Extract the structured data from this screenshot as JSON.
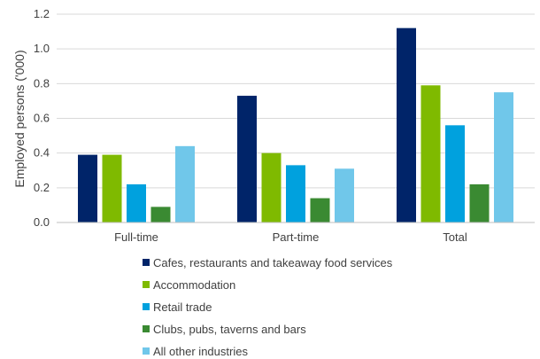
{
  "chart_data": {
    "type": "bar",
    "title": "",
    "xlabel": "",
    "ylabel": "Employed persons ('000)",
    "ylim": [
      0,
      1.2
    ],
    "yticks": [
      "0.0",
      "0.2",
      "0.4",
      "0.6",
      "0.8",
      "1.0",
      "1.2"
    ],
    "grid": true,
    "legend_position": "bottom",
    "categories": [
      "Full-time",
      "Part-time",
      "Total"
    ],
    "series": [
      {
        "name": "Cafes, restaurants and takeaway food services",
        "color": "#002469",
        "values": [
          0.39,
          0.73,
          1.12
        ]
      },
      {
        "name": "Accommodation",
        "color": "#7FBA00",
        "values": [
          0.39,
          0.4,
          0.79
        ]
      },
      {
        "name": "Retail trade",
        "color": "#00A1DE",
        "values": [
          0.22,
          0.33,
          0.56
        ]
      },
      {
        "name": "Clubs, pubs, taverns and bars",
        "color": "#3A8A32",
        "values": [
          0.09,
          0.14,
          0.22
        ]
      },
      {
        "name": "All other industries",
        "color": "#70C7EA",
        "values": [
          0.44,
          0.31,
          0.75
        ]
      }
    ]
  }
}
